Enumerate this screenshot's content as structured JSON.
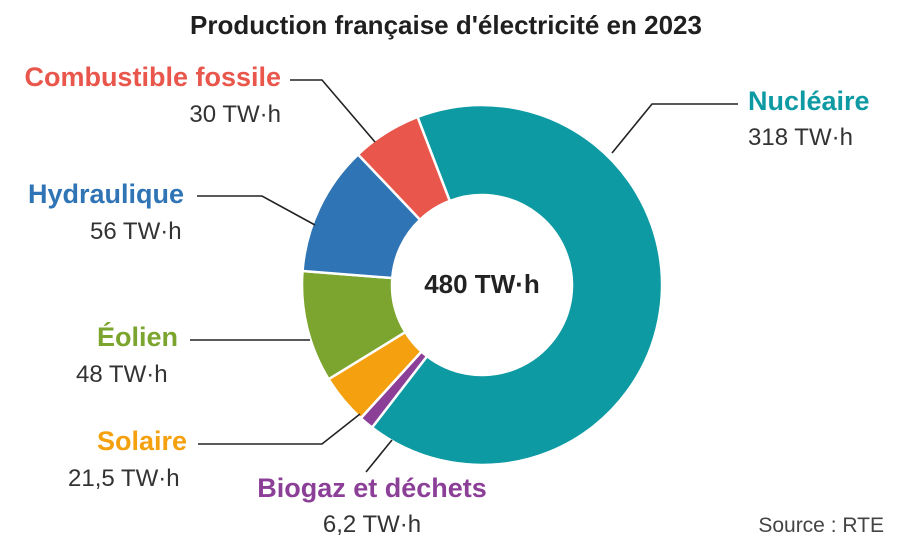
{
  "chart_data": {
    "type": "pie",
    "variant": "donut",
    "title": "Production française d'électricité en 2023",
    "center_label": "480 TW·h",
    "source": "Source : RTE",
    "unit": "TW·h",
    "total": 480,
    "slices": [
      {
        "label": "Nucléaire",
        "value": 318,
        "value_label": "318 TW·h",
        "color": "#0e9aa3"
      },
      {
        "label": "Biogaz et déchets",
        "value": 6.2,
        "value_label": "6,2 TW·h",
        "color": "#8b3f97"
      },
      {
        "label": "Solaire",
        "value": 21.5,
        "value_label": "21,5 TW·h",
        "color": "#f4a00f"
      },
      {
        "label": "Éolien",
        "value": 48,
        "value_label": "48 TW·h",
        "color": "#7ba52e"
      },
      {
        "label": "Hydraulique",
        "value": 56,
        "value_label": "56 TW·h",
        "color": "#2f74b5"
      },
      {
        "label": "Combustible fossile",
        "value": 30,
        "value_label": "30 TW·h",
        "color": "#e8564c"
      }
    ]
  }
}
